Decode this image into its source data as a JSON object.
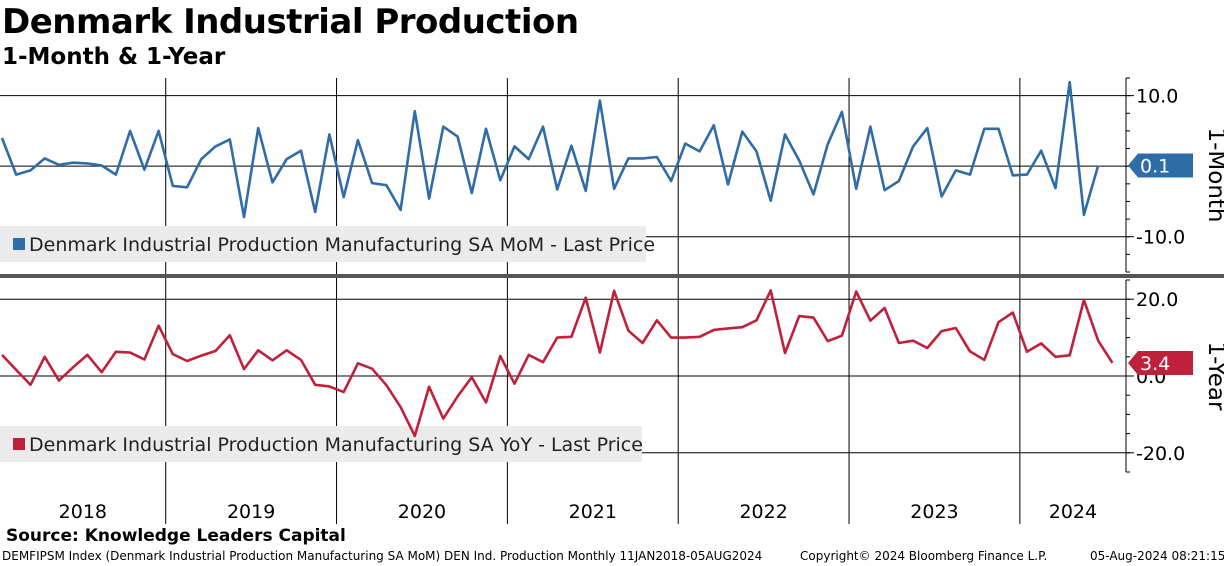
{
  "header": {
    "title": "Denmark Industrial Production",
    "subtitle": "1-Month & 1-Year"
  },
  "footer": {
    "source": "Source: Knowledge Leaders Capital",
    "index_desc": "DEMFIPSM Index (Denmark Industrial Production Manufacturing SA MoM) DEN Ind. Production  Monthly 11JAN2018-05AUG2024",
    "copyright": "Copyright© 2024 Bloomberg Finance L.P.",
    "timestamp": "05-Aug-2024 08:21:15"
  },
  "chart_data": [
    {
      "type": "line",
      "panel": "top",
      "title": "1-Month",
      "axis_label": "1-Month",
      "ylim": [
        -15,
        12.5
      ],
      "yticks": [
        10.0,
        0.0,
        -10.0
      ],
      "ytick_labels": [
        "10.0",
        "",
        "-10.0"
      ],
      "legend": "Denmark Industrial Production Manufacturing SA MoM - Last Price",
      "legend_position": "bottom-left",
      "last_value": 0.1,
      "last_label": "0.1",
      "color": "#2f6ca8",
      "x_start": "2018-01",
      "values": [
        4.0,
        -1.2,
        -0.6,
        1.1,
        0.2,
        0.5,
        0.4,
        0.1,
        -1.2,
        5.0,
        -0.5,
        5.0,
        -2.8,
        -3.0,
        1.0,
        2.8,
        3.8,
        -7.2,
        5.4,
        -2.3,
        1.0,
        2.2,
        -6.5,
        4.5,
        -4.4,
        3.7,
        -2.4,
        -2.7,
        -6.2,
        7.8,
        -4.6,
        5.6,
        4.2,
        -3.8,
        5.3,
        -2.0,
        2.8,
        1.0,
        5.6,
        -3.3,
        2.9,
        -3.5,
        9.3,
        -3.2,
        1.1,
        1.1,
        1.3,
        -2.1,
        3.2,
        2.1,
        5.8,
        -2.6,
        4.9,
        2.1,
        -4.9,
        4.5,
        0.8,
        -4.0,
        3.1,
        7.7,
        -3.2,
        5.6,
        -3.4,
        -2.1,
        2.8,
        5.4,
        -4.3,
        -0.6,
        -1.2,
        5.3,
        5.3,
        -1.3,
        -1.2,
        2.2,
        -3.1,
        11.9,
        -6.9,
        0.1
      ]
    },
    {
      "type": "line",
      "panel": "bottom",
      "title": "1-Year",
      "axis_label": "1-Year",
      "ylim": [
        -25,
        25
      ],
      "yticks": [
        20.0,
        0.0,
        -20.0
      ],
      "ytick_labels": [
        "20.0",
        "0.0",
        "-20.0"
      ],
      "legend": "Denmark Industrial Production Manufacturing SA YoY - Last Price",
      "legend_position": "bottom-left",
      "last_value": 3.4,
      "last_label": "3.4",
      "color": "#c0213a",
      "x_start": "2018-01",
      "values": [
        5.5,
        1.6,
        -2.3,
        5.0,
        -1.2,
        2.3,
        5.5,
        1.0,
        6.3,
        6.1,
        4.3,
        13.1,
        5.7,
        3.9,
        5.3,
        6.5,
        10.6,
        1.8,
        6.7,
        4.1,
        6.7,
        4.2,
        -2.3,
        -2.7,
        -4.2,
        3.3,
        1.9,
        -2.4,
        -8.1,
        -15.6,
        -2.8,
        -11.1,
        -5.3,
        -0.3,
        -6.9,
        5.2,
        -2.0,
        5.5,
        3.6,
        10.0,
        10.2,
        20.4,
        6.1,
        22.2,
        11.8,
        8.6,
        14.5,
        10.0,
        10.0,
        10.2,
        12.0,
        12.4,
        12.7,
        14.5,
        22.3,
        6.0,
        15.6,
        15.2,
        9.1,
        10.5,
        22.0,
        14.4,
        17.7,
        8.6,
        9.2,
        7.3,
        11.7,
        12.5,
        6.4,
        4.2,
        14.0,
        16.5,
        6.3,
        8.5,
        5.0,
        5.4,
        19.8,
        9.2,
        3.4
      ]
    }
  ],
  "x_axis": {
    "years": [
      "2018",
      "2019",
      "2020",
      "2021",
      "2022",
      "2023",
      "2024"
    ]
  }
}
